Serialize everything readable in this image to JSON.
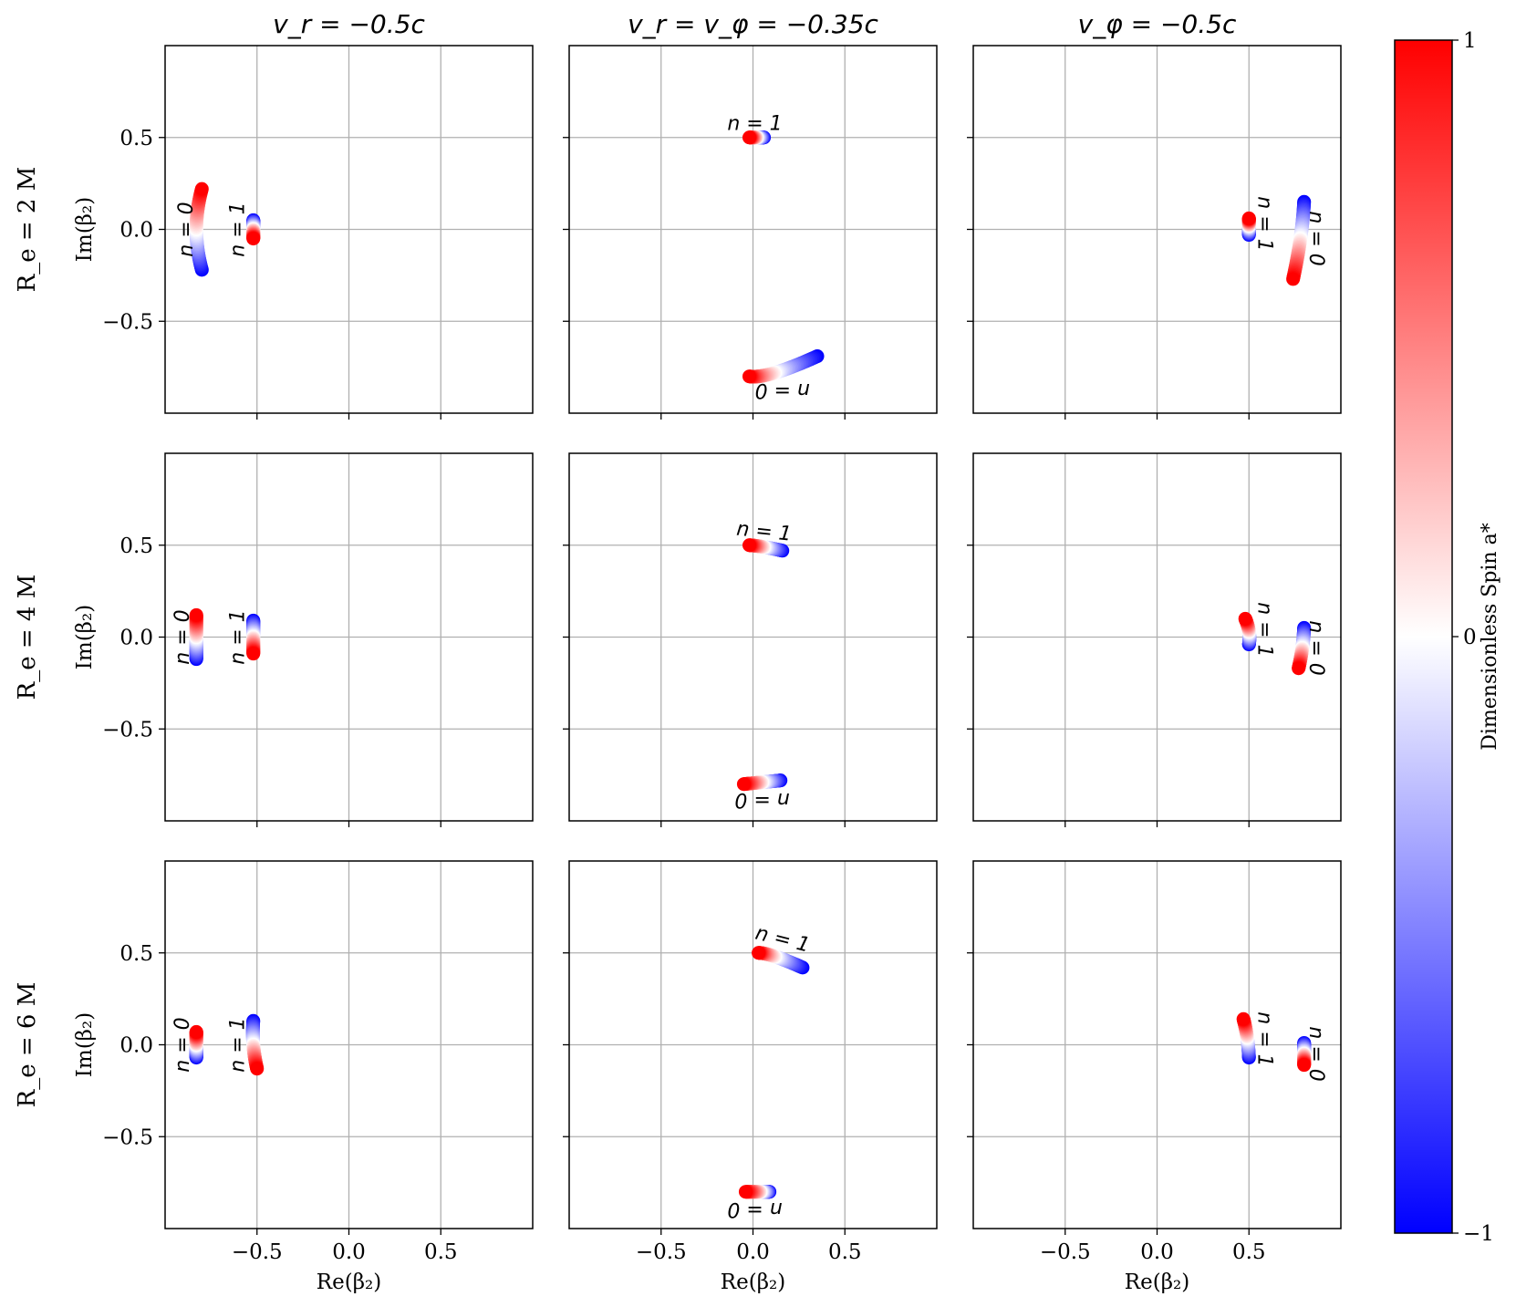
{
  "chart_data": {
    "type": "scatter",
    "title": "",
    "column_titles": [
      "v_r = −0.5c",
      "v_r = v_φ = −0.35c",
      "v_φ = −0.5c"
    ],
    "row_labels": [
      "R_e = 2 M",
      "R_e = 4 M",
      "R_e = 6 M"
    ],
    "xlabel": "Re(β₂)",
    "ylabel": "Im(β₂)",
    "xlim": [
      -1.0,
      1.0
    ],
    "ylim": [
      -1.0,
      1.0
    ],
    "xticks": [
      -0.5,
      0.0,
      0.5
    ],
    "yticks": [
      0.5,
      0.0,
      -0.5
    ],
    "xtick_labels": [
      "−0.5",
      "0.0",
      "0.5"
    ],
    "ytick_labels": [
      "0.5",
      "0.0",
      "−0.5"
    ],
    "grid": true,
    "colorbar": {
      "label": "Dimensionless Spin a*",
      "min": -1,
      "max": 1,
      "tick_labels": [
        "1",
        "0",
        "−1"
      ],
      "colormap": "bwr",
      "low_color": "#0000ff",
      "mid_color": "#ffffff",
      "high_color": "#ff0000"
    },
    "panels": [
      {
        "row": 0,
        "col": 0,
        "curves": [
          {
            "label": "n = 0",
            "start_spin_neg": [
              -0.8,
              -0.22
            ],
            "mid": [
              -0.83,
              0.0
            ],
            "end_spin_pos": [
              -0.8,
              0.22
            ],
            "label_at": [
              -0.88,
              0.0
            ],
            "label_rot": -90
          },
          {
            "label": "n = 1",
            "start_spin_neg": [
              -0.52,
              0.05
            ],
            "mid": [
              -0.52,
              0.0
            ],
            "end_spin_pos": [
              -0.52,
              -0.05
            ],
            "label_at": [
              -0.6,
              0.0
            ],
            "label_rot": -90
          }
        ]
      },
      {
        "row": 0,
        "col": 1,
        "curves": [
          {
            "label": "n = 1",
            "start_spin_neg": [
              0.06,
              0.5
            ],
            "mid": [
              0.02,
              0.5
            ],
            "end_spin_pos": [
              -0.02,
              0.5
            ],
            "label_at": [
              0.01,
              0.57
            ],
            "label_rot": 0
          },
          {
            "label": "n = 0",
            "start_spin_neg": [
              0.35,
              -0.69
            ],
            "mid": [
              0.12,
              -0.78
            ],
            "end_spin_pos": [
              -0.02,
              -0.8
            ],
            "label_at": [
              0.16,
              -0.87
            ],
            "label_rot": 180
          }
        ]
      },
      {
        "row": 0,
        "col": 2,
        "curves": [
          {
            "label": "n = 1",
            "start_spin_neg": [
              0.5,
              -0.03
            ],
            "mid": [
              0.5,
              0.02
            ],
            "end_spin_pos": [
              0.5,
              0.06
            ],
            "label_at": [
              0.58,
              0.03
            ],
            "label_rot": 90
          },
          {
            "label": "n = 0",
            "start_spin_neg": [
              0.8,
              0.15
            ],
            "mid": [
              0.78,
              -0.05
            ],
            "end_spin_pos": [
              0.74,
              -0.27
            ],
            "label_at": [
              0.86,
              -0.05
            ],
            "label_rot": 90
          }
        ]
      },
      {
        "row": 1,
        "col": 0,
        "curves": [
          {
            "label": "n = 0",
            "start_spin_neg": [
              -0.83,
              -0.12
            ],
            "mid": [
              -0.83,
              0.0
            ],
            "end_spin_pos": [
              -0.83,
              0.12
            ],
            "label_at": [
              -0.9,
              0.0
            ],
            "label_rot": -90
          },
          {
            "label": "n = 1",
            "start_spin_neg": [
              -0.52,
              0.09
            ],
            "mid": [
              -0.52,
              0.0
            ],
            "end_spin_pos": [
              -0.52,
              -0.09
            ],
            "label_at": [
              -0.6,
              0.0
            ],
            "label_rot": -90
          }
        ]
      },
      {
        "row": 1,
        "col": 1,
        "curves": [
          {
            "label": "n = 1",
            "start_spin_neg": [
              0.16,
              0.47
            ],
            "mid": [
              0.06,
              0.49
            ],
            "end_spin_pos": [
              -0.02,
              0.5
            ],
            "label_at": [
              0.06,
              0.57
            ],
            "label_rot": 6
          },
          {
            "label": "n = 0",
            "start_spin_neg": [
              0.15,
              -0.78
            ],
            "mid": [
              0.05,
              -0.79
            ],
            "end_spin_pos": [
              -0.05,
              -0.8
            ],
            "label_at": [
              0.05,
              -0.88
            ],
            "label_rot": 180
          }
        ]
      },
      {
        "row": 1,
        "col": 2,
        "curves": [
          {
            "label": "n = 1",
            "start_spin_neg": [
              0.5,
              -0.04
            ],
            "mid": [
              0.5,
              0.03
            ],
            "end_spin_pos": [
              0.48,
              0.1
            ],
            "label_at": [
              0.58,
              0.04
            ],
            "label_rot": 90
          },
          {
            "label": "n = 0",
            "start_spin_neg": [
              0.8,
              0.05
            ],
            "mid": [
              0.79,
              -0.06
            ],
            "end_spin_pos": [
              0.77,
              -0.17
            ],
            "label_at": [
              0.86,
              -0.06
            ],
            "label_rot": 90
          }
        ]
      },
      {
        "row": 2,
        "col": 0,
        "curves": [
          {
            "label": "n = 0",
            "start_spin_neg": [
              -0.83,
              -0.07
            ],
            "mid": [
              -0.83,
              0.0
            ],
            "end_spin_pos": [
              -0.83,
              0.07
            ],
            "label_at": [
              -0.9,
              0.0
            ],
            "label_rot": -90
          },
          {
            "label": "n = 1",
            "start_spin_neg": [
              -0.52,
              0.13
            ],
            "mid": [
              -0.52,
              0.0
            ],
            "end_spin_pos": [
              -0.5,
              -0.13
            ],
            "label_at": [
              -0.6,
              0.0
            ],
            "label_rot": -90
          }
        ]
      },
      {
        "row": 2,
        "col": 1,
        "curves": [
          {
            "label": "n = 1",
            "start_spin_neg": [
              0.27,
              0.42
            ],
            "mid": [
              0.12,
              0.48
            ],
            "end_spin_pos": [
              0.03,
              0.5
            ],
            "label_at": [
              0.16,
              0.57
            ],
            "label_rot": 14
          },
          {
            "label": "n = 0",
            "start_spin_neg": [
              0.09,
              -0.8
            ],
            "mid": [
              0.04,
              -0.8
            ],
            "end_spin_pos": [
              -0.04,
              -0.8
            ],
            "label_at": [
              0.01,
              -0.89
            ],
            "label_rot": 180
          }
        ]
      },
      {
        "row": 2,
        "col": 2,
        "curves": [
          {
            "label": "n = 1",
            "start_spin_neg": [
              0.5,
              -0.07
            ],
            "mid": [
              0.49,
              0.04
            ],
            "end_spin_pos": [
              0.47,
              0.14
            ],
            "label_at": [
              0.58,
              0.03
            ],
            "label_rot": 90
          },
          {
            "label": "n = 0",
            "start_spin_neg": [
              0.8,
              0.01
            ],
            "mid": [
              0.8,
              -0.05
            ],
            "end_spin_pos": [
              0.8,
              -0.11
            ],
            "label_at": [
              0.86,
              -0.05
            ],
            "label_rot": 90
          }
        ]
      }
    ]
  }
}
